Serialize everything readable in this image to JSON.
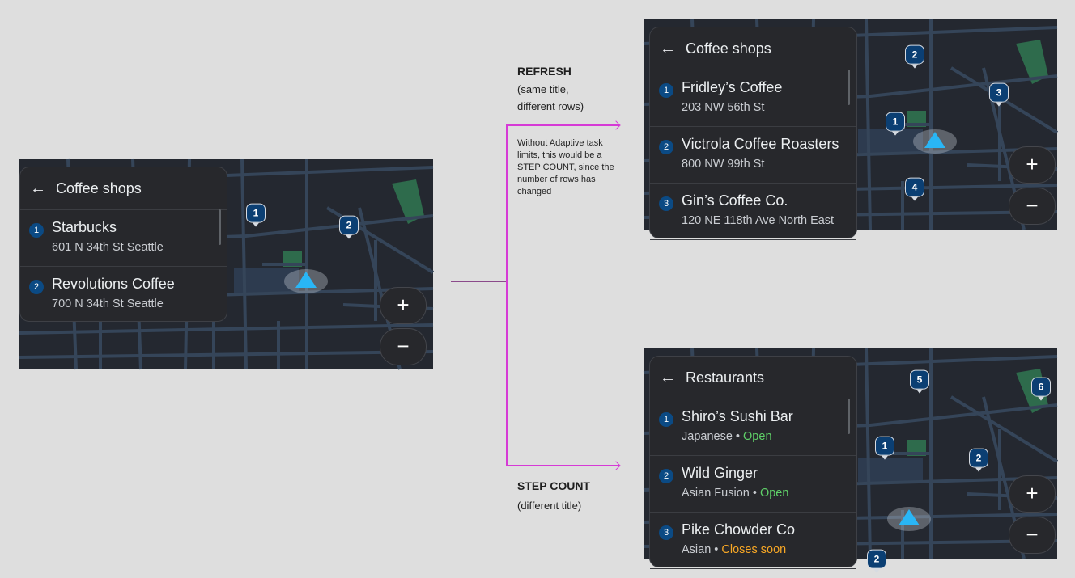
{
  "annotations": {
    "refresh_label": "REFRESH",
    "refresh_sub": "(same title, different rows)",
    "refresh_note": "Without Adaptive task limits, this would be a STEP COUNT, since the number of rows has changed",
    "step_label": "STEP COUNT",
    "step_sub": "(different title)",
    "connector_color": "#d63ad6"
  },
  "screens": [
    {
      "id": "original",
      "title": "Coffee shops",
      "back_icon": "arrow-left-icon",
      "rows": [
        {
          "num": "1",
          "title": "Starbucks",
          "sub": "601 N 34th St Seattle"
        },
        {
          "num": "2",
          "title": "Revolutions Coffee",
          "sub": "700 N 34th St Seattle"
        }
      ],
      "pins": [
        "1",
        "2"
      ],
      "zoom_in": "+",
      "zoom_out": "−"
    },
    {
      "id": "refresh",
      "title": "Coffee shops",
      "back_icon": "arrow-left-icon",
      "rows": [
        {
          "num": "1",
          "title": "Fridley’s Coffee",
          "sub": "203 NW 56th St"
        },
        {
          "num": "2",
          "title": "Victrola Coffee Roasters",
          "sub": "800 NW 99th St"
        },
        {
          "num": "3",
          "title": "Gin’s Coffee Co.",
          "sub": "120 NE 118th Ave North East"
        }
      ],
      "pins": [
        "2",
        "3",
        "1",
        "4"
      ],
      "zoom_in": "+",
      "zoom_out": "−"
    },
    {
      "id": "step-count",
      "title": "Restaurants",
      "back_icon": "arrow-left-icon",
      "rows": [
        {
          "num": "1",
          "title": "Shiro’s Sushi Bar",
          "sub": "Japanese",
          "status": "Open",
          "status_color": "#5fd068"
        },
        {
          "num": "2",
          "title": "Wild Ginger",
          "sub": "Asian Fusion",
          "status": "Open",
          "status_color": "#5fd068"
        },
        {
          "num": "3",
          "title": "Pike Chowder Co",
          "sub": "Asian",
          "status": "Closes soon",
          "status_color": "#f9a825"
        }
      ],
      "pins": [
        "5",
        "6",
        "1",
        "2",
        "2"
      ],
      "zoom_in": "+",
      "zoom_out": "−"
    }
  ]
}
